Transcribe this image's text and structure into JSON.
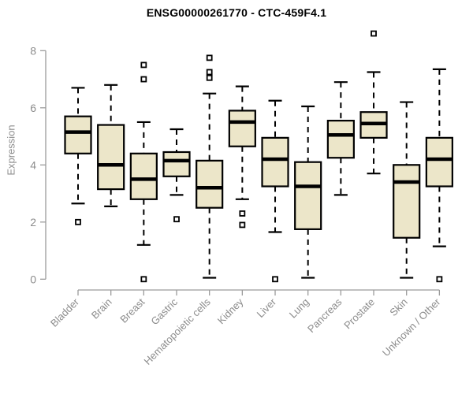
{
  "title": "ENSG00000261770 - CTC-459F4.1",
  "ylabel": "Expression",
  "colors": {
    "box_fill": "#ece6c9",
    "box_stroke": "#000000",
    "axis": "#9b9b9b",
    "tick_text": "#8c8c8c",
    "title_text": "#000000",
    "outlier_fill": "#ffffff"
  },
  "chart_data": {
    "type": "boxplot",
    "title": "ENSG00000261770 - CTC-459F4.1",
    "xlabel": "",
    "ylabel": "Expression",
    "ylim": [
      0,
      8.7
    ],
    "yticks": [
      0,
      2,
      4,
      6,
      8
    ],
    "grid": false,
    "legend": false,
    "categories": [
      "Bladder",
      "Brain",
      "Breast",
      "Gastric",
      "Hematopoietic cells",
      "Kidney",
      "Liver",
      "Lung",
      "Pancreas",
      "Prostate",
      "Skin",
      "Unknown / Other"
    ],
    "series": [
      {
        "name": "Bladder",
        "whisker_low": 2.65,
        "q1": 4.4,
        "median": 5.15,
        "q3": 5.7,
        "whisker_high": 6.7,
        "outliers": [
          2.0
        ]
      },
      {
        "name": "Brain",
        "whisker_low": 2.55,
        "q1": 3.15,
        "median": 4.0,
        "q3": 5.4,
        "whisker_high": 6.8,
        "outliers": []
      },
      {
        "name": "Breast",
        "whisker_low": 1.2,
        "q1": 2.8,
        "median": 3.5,
        "q3": 4.4,
        "whisker_high": 5.5,
        "outliers": [
          7.5,
          7.0,
          0.0
        ]
      },
      {
        "name": "Gastric",
        "whisker_low": 2.95,
        "q1": 3.6,
        "median": 4.15,
        "q3": 4.45,
        "whisker_high": 5.25,
        "outliers": [
          2.1
        ]
      },
      {
        "name": "Hematopoietic cells",
        "whisker_low": 0.05,
        "q1": 2.5,
        "median": 3.2,
        "q3": 4.15,
        "whisker_high": 6.5,
        "outliers": [
          7.75,
          7.25,
          7.05
        ]
      },
      {
        "name": "Kidney",
        "whisker_low": 2.8,
        "q1": 4.65,
        "median": 5.5,
        "q3": 5.9,
        "whisker_high": 6.75,
        "outliers": [
          2.3,
          1.9
        ]
      },
      {
        "name": "Liver",
        "whisker_low": 1.65,
        "q1": 3.25,
        "median": 4.2,
        "q3": 4.95,
        "whisker_high": 6.25,
        "outliers": [
          0.0
        ]
      },
      {
        "name": "Lung",
        "whisker_low": 0.05,
        "q1": 1.75,
        "median": 3.25,
        "q3": 4.1,
        "whisker_high": 6.05,
        "outliers": []
      },
      {
        "name": "Pancreas",
        "whisker_low": 2.95,
        "q1": 4.25,
        "median": 5.05,
        "q3": 5.55,
        "whisker_high": 6.9,
        "outliers": []
      },
      {
        "name": "Prostate",
        "whisker_low": 3.7,
        "q1": 4.95,
        "median": 5.45,
        "q3": 5.85,
        "whisker_high": 7.25,
        "outliers": [
          8.6
        ]
      },
      {
        "name": "Skin",
        "whisker_low": 0.05,
        "q1": 1.45,
        "median": 3.4,
        "q3": 4.0,
        "whisker_high": 6.2,
        "outliers": []
      },
      {
        "name": "Unknown / Other",
        "whisker_low": 1.15,
        "q1": 3.25,
        "median": 4.2,
        "q3": 4.95,
        "whisker_high": 7.35,
        "outliers": [
          0.0
        ]
      }
    ]
  }
}
